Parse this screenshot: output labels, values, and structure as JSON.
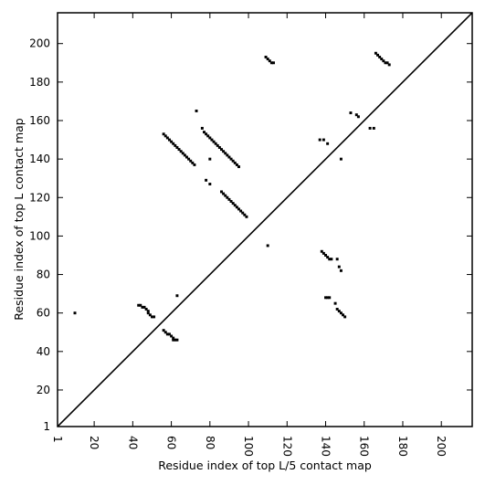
{
  "chart_data": {
    "type": "scatter",
    "title": "",
    "xlabel": "Residue index of top L/5 contact map",
    "ylabel": "Residue index of top L contact map",
    "xlim": [
      1,
      216
    ],
    "ylim": [
      1,
      216
    ],
    "grid": false,
    "legend": "none",
    "x_ticks": [
      1,
      20,
      40,
      60,
      80,
      100,
      120,
      140,
      160,
      180,
      200
    ],
    "y_ticks": [
      1,
      20,
      40,
      60,
      80,
      100,
      120,
      140,
      160,
      180,
      200
    ],
    "diagonal": {
      "from": [
        1,
        1
      ],
      "to": [
        216,
        216
      ]
    },
    "marker_color": "#000000",
    "points": [
      [
        10,
        60
      ],
      [
        43,
        64
      ],
      [
        44,
        64
      ],
      [
        45,
        63
      ],
      [
        46,
        63
      ],
      [
        47,
        62
      ],
      [
        48,
        61
      ],
      [
        48,
        60
      ],
      [
        49,
        59
      ],
      [
        50,
        58
      ],
      [
        51,
        58
      ],
      [
        56,
        51
      ],
      [
        57,
        50
      ],
      [
        58,
        49
      ],
      [
        59,
        49
      ],
      [
        60,
        48
      ],
      [
        61,
        47
      ],
      [
        61,
        46
      ],
      [
        62,
        46
      ],
      [
        63,
        46
      ],
      [
        63,
        69
      ],
      [
        56,
        153
      ],
      [
        57,
        152
      ],
      [
        58,
        151
      ],
      [
        59,
        150
      ],
      [
        60,
        149
      ],
      [
        61,
        148
      ],
      [
        62,
        147
      ],
      [
        63,
        146
      ],
      [
        64,
        145
      ],
      [
        65,
        144
      ],
      [
        66,
        143
      ],
      [
        67,
        142
      ],
      [
        68,
        141
      ],
      [
        69,
        140
      ],
      [
        70,
        139
      ],
      [
        71,
        138
      ],
      [
        72,
        137
      ],
      [
        73,
        165
      ],
      [
        76,
        156
      ],
      [
        77,
        154
      ],
      [
        78,
        153
      ],
      [
        79,
        152
      ],
      [
        80,
        151
      ],
      [
        81,
        150
      ],
      [
        82,
        149
      ],
      [
        83,
        148
      ],
      [
        84,
        147
      ],
      [
        85,
        146
      ],
      [
        86,
        145
      ],
      [
        87,
        144
      ],
      [
        88,
        143
      ],
      [
        89,
        142
      ],
      [
        90,
        141
      ],
      [
        91,
        140
      ],
      [
        92,
        139
      ],
      [
        93,
        138
      ],
      [
        94,
        137
      ],
      [
        95,
        136
      ],
      [
        80,
        140
      ],
      [
        78,
        129
      ],
      [
        80,
        127
      ],
      [
        86,
        123
      ],
      [
        87,
        122
      ],
      [
        88,
        121
      ],
      [
        89,
        120
      ],
      [
        90,
        119
      ],
      [
        91,
        118
      ],
      [
        92,
        117
      ],
      [
        93,
        116
      ],
      [
        94,
        115
      ],
      [
        95,
        114
      ],
      [
        96,
        113
      ],
      [
        97,
        112
      ],
      [
        98,
        111
      ],
      [
        99,
        110
      ],
      [
        109,
        193
      ],
      [
        110,
        192
      ],
      [
        111,
        191
      ],
      [
        112,
        190
      ],
      [
        113,
        190
      ],
      [
        110,
        95
      ],
      [
        137,
        150
      ],
      [
        139,
        150
      ],
      [
        141,
        148
      ],
      [
        138,
        92
      ],
      [
        139,
        91
      ],
      [
        140,
        90
      ],
      [
        141,
        89
      ],
      [
        142,
        88
      ],
      [
        143,
        88
      ],
      [
        146,
        88
      ],
      [
        147,
        84
      ],
      [
        148,
        82
      ],
      [
        140,
        68
      ],
      [
        141,
        68
      ],
      [
        142,
        68
      ],
      [
        145,
        65
      ],
      [
        146,
        62
      ],
      [
        147,
        61
      ],
      [
        148,
        60
      ],
      [
        149,
        59
      ],
      [
        150,
        58
      ],
      [
        148,
        140
      ],
      [
        153,
        164
      ],
      [
        156,
        163
      ],
      [
        157,
        162
      ],
      [
        163,
        156
      ],
      [
        165,
        156
      ],
      [
        166,
        195
      ],
      [
        167,
        194
      ],
      [
        168,
        193
      ],
      [
        169,
        192
      ],
      [
        170,
        191
      ],
      [
        171,
        190
      ],
      [
        172,
        190
      ],
      [
        173,
        189
      ]
    ]
  }
}
